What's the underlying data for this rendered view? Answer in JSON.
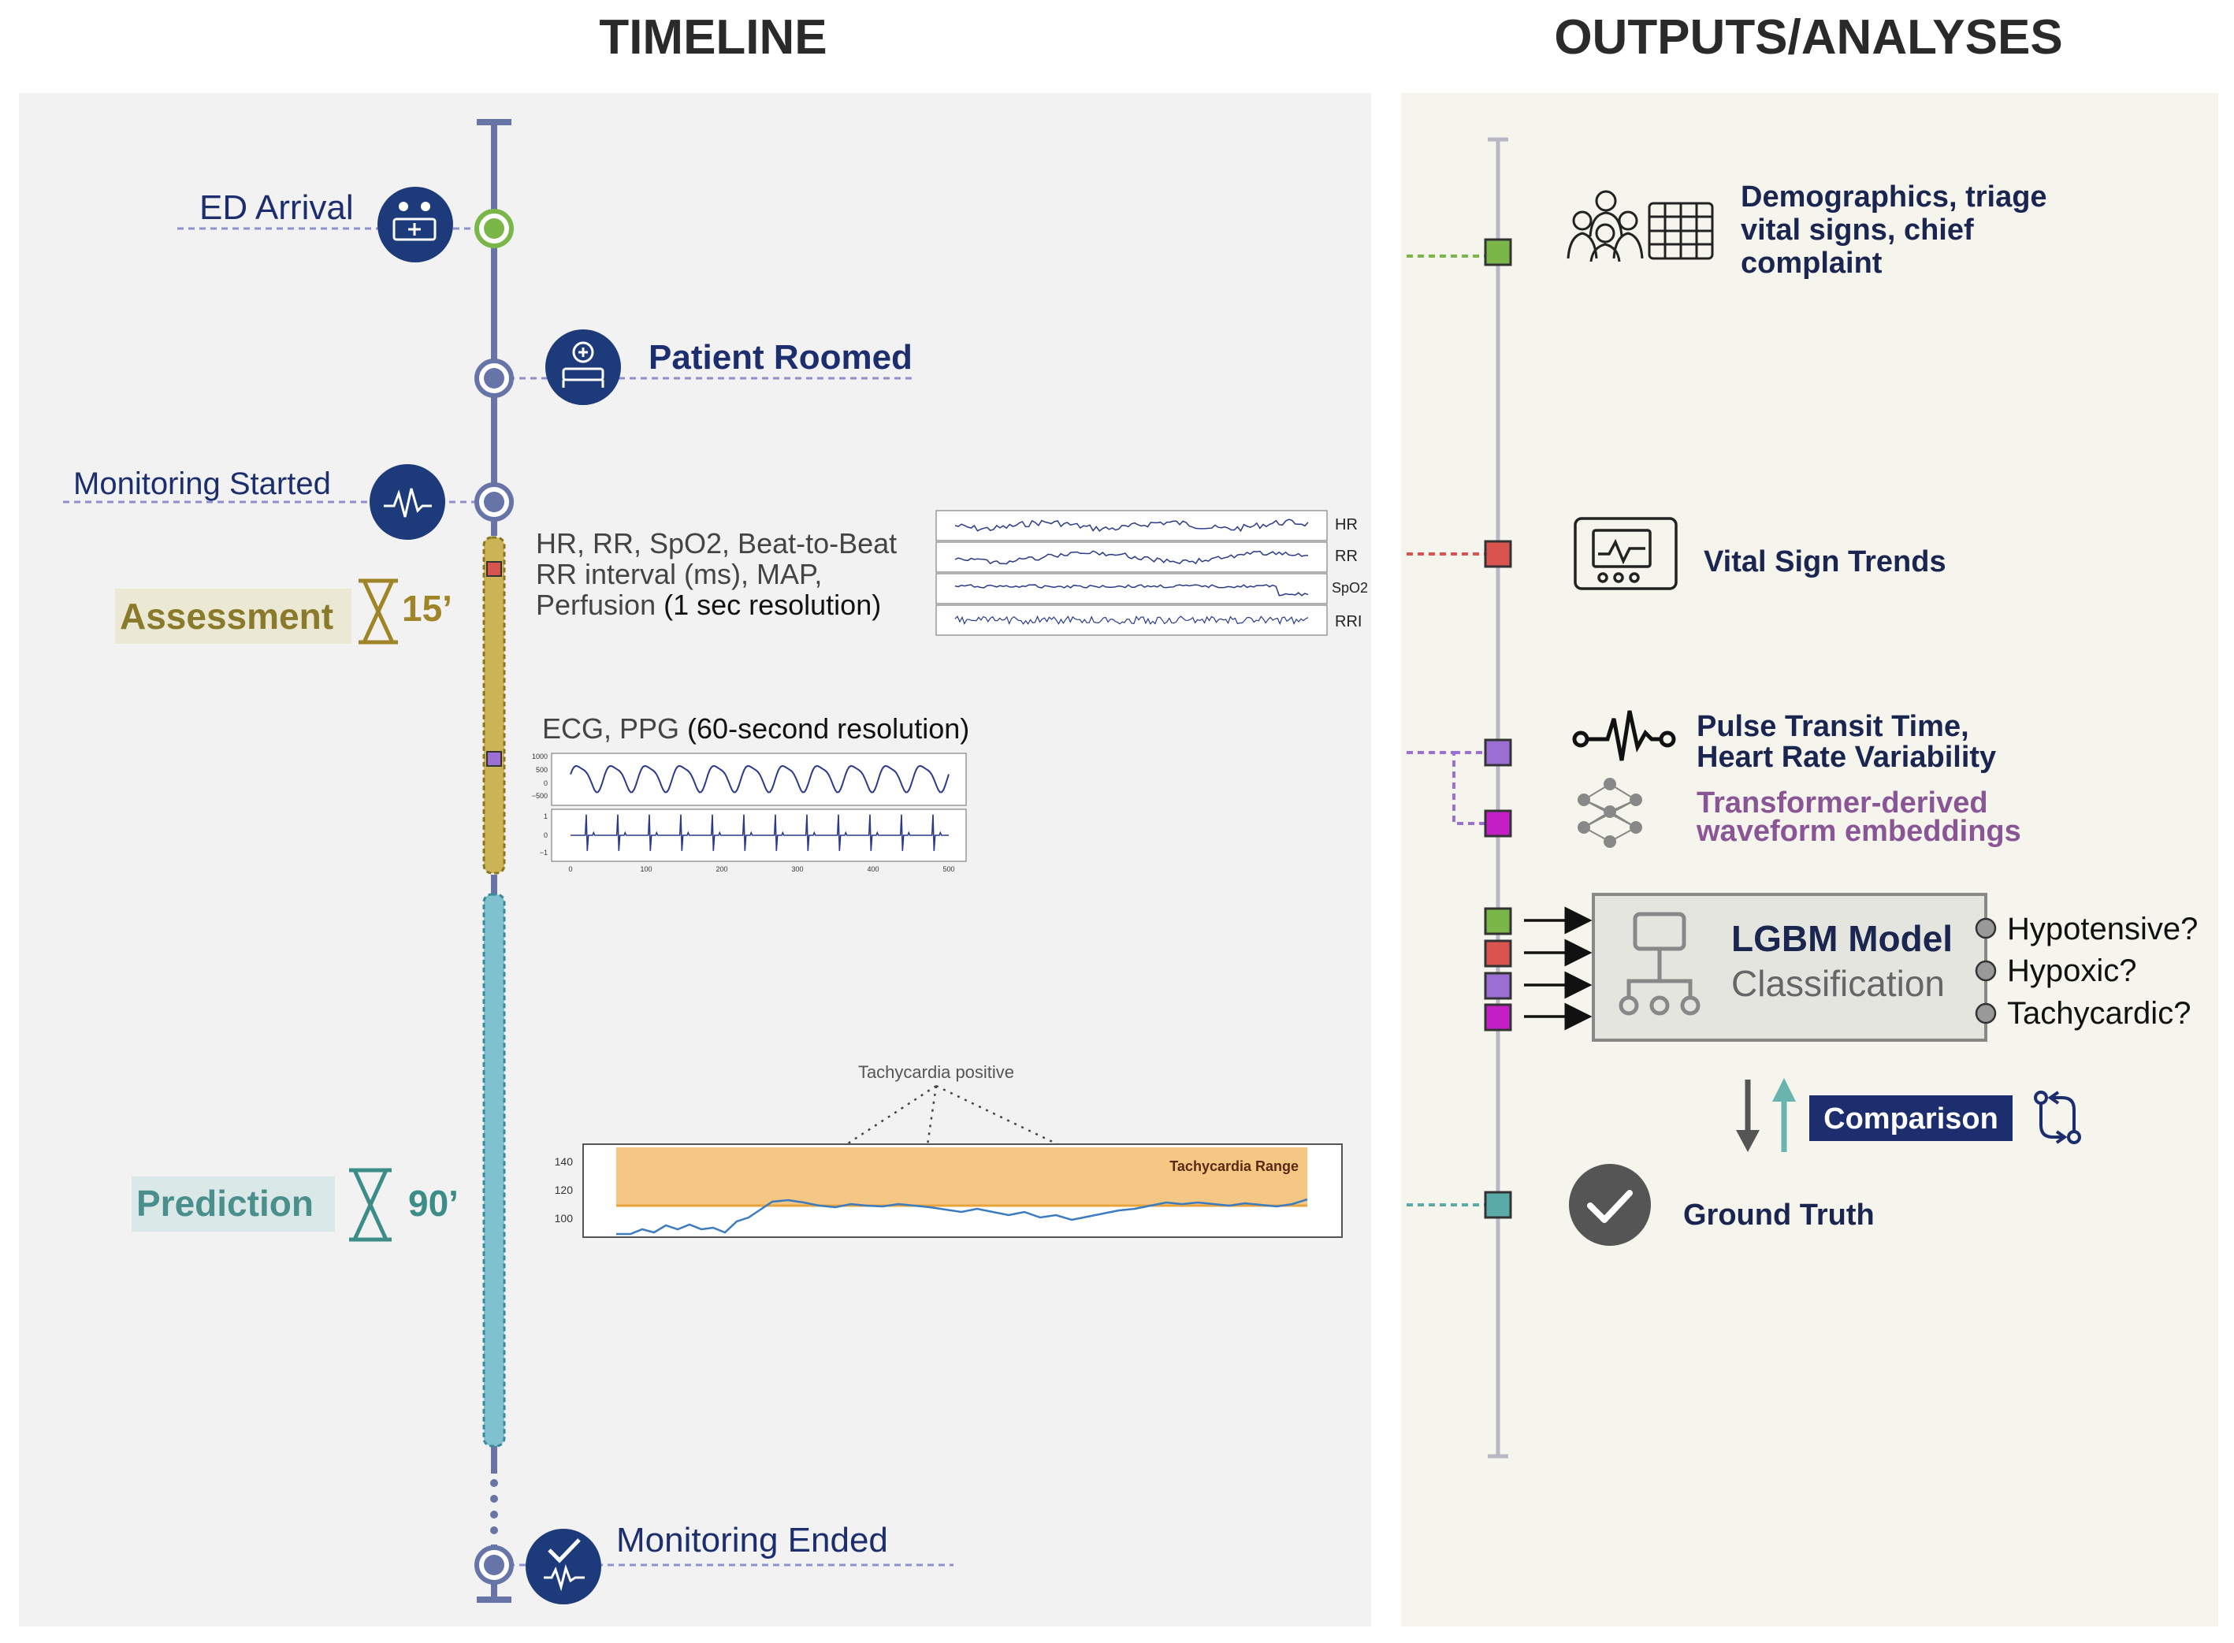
{
  "headers": {
    "timeline": "TIMELINE",
    "outputs": "OUTPUTS/ANALYSES"
  },
  "timeline": {
    "events": {
      "ed_arrival": "ED Arrival",
      "patient_roomed": "Patient Roomed",
      "monitoring_started": "Monitoring Started",
      "monitoring_ended": "Monitoring Ended"
    },
    "phases": {
      "assessment": {
        "label": "Assessment",
        "duration": "15’"
      },
      "prediction": {
        "label": "Prediction",
        "duration": "90’"
      }
    },
    "vitals_text": {
      "line1": "HR, RR, SpO2, Beat-to-Beat",
      "line2": "RR interval (ms), MAP,",
      "line3_a": "Perfusion ",
      "line3_b": "(1 sec resolution)"
    },
    "vitals_strips": [
      "HR",
      "RR",
      "SpO2",
      "RRI"
    ],
    "waveform_text": {
      "a": "ECG, PPG ",
      "b": "(60-second resolution)"
    },
    "tachy": {
      "annotation": "Tachycardia positive",
      "range_label": "Tachycardia Range",
      "yticks": [
        "140",
        "120",
        "100"
      ]
    },
    "ppg_yticks": [
      "1000",
      "500",
      "0",
      "−500"
    ],
    "ecg_yticks": [
      "1",
      "0",
      "−1"
    ],
    "ecg_xticks": [
      "0",
      "100",
      "200",
      "300",
      "400",
      "500"
    ]
  },
  "outputs": {
    "demographics": [
      "Demographics, triage",
      "vital signs, chief",
      "complaint"
    ],
    "vital_trends": "Vital Sign Trends",
    "ptt": [
      "Pulse Transit Time,",
      "Heart Rate Variability"
    ],
    "transformer": [
      "Transformer-derived",
      "waveform embeddings"
    ],
    "model": {
      "title": "LGBM Model",
      "subtitle": "Classification"
    },
    "classes": [
      "Hypotensive?",
      "Hypoxic?",
      "Tachycardic?"
    ],
    "comparison": "Comparison",
    "ground_truth": "Ground Truth"
  },
  "colors": {
    "navy": "#1d3a7a",
    "green": "#7ab648",
    "red": "#d9534f",
    "purple": "#9b6fd4",
    "magenta": "#c41fc4",
    "teal": "#5aaaa8",
    "assessment": "#cbb455",
    "prediction": "#7fc1cf"
  }
}
